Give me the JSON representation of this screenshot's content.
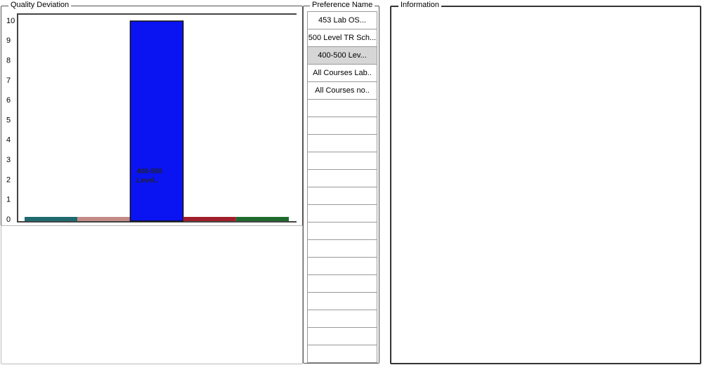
{
  "panels": {
    "chart": "Quality Deviation",
    "list": "Preference Name",
    "info": "Information"
  },
  "chart_data": {
    "type": "bar",
    "categories": [
      null,
      null,
      "400-500 Level..",
      null,
      null
    ],
    "values": [
      0,
      0,
      10,
      0,
      0
    ],
    "colors": [
      "#1e6a6e",
      "#c48a86",
      "#0a14f2",
      "#a01e2a",
      "#1e6a2e"
    ],
    "ylim": [
      0,
      10
    ],
    "yticks": [
      0,
      1,
      2,
      3,
      4,
      5,
      6,
      7,
      8,
      9,
      10
    ]
  },
  "preferences": {
    "items": [
      "453 Lab OS...",
      "500 Level TR Sch...",
      "400-500 Lev...",
      "All Courses Lab..",
      "All Courses no.."
    ],
    "selected": 2
  }
}
